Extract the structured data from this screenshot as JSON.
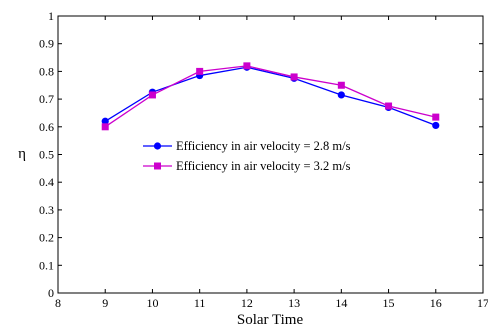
{
  "chart_data": {
    "type": "line",
    "xlabel": "Solar Time",
    "ylabel": "η",
    "xlim": [
      8,
      17
    ],
    "ylim": [
      0,
      1
    ],
    "x_ticks": [
      8,
      9,
      10,
      11,
      12,
      13,
      14,
      15,
      16,
      17
    ],
    "y_ticks": [
      0,
      0.1,
      0.2,
      0.3,
      0.4,
      0.5,
      0.6,
      0.7,
      0.8,
      0.9,
      1
    ],
    "y_tick_labels": [
      "0",
      "0.1",
      "0.2",
      "0.3",
      "0.4",
      "0.5",
      "0.6",
      "0.7",
      "0.8",
      "0.9",
      "1"
    ],
    "grid": false,
    "legend_position": "center",
    "series": [
      {
        "name": "Efficiency in air velocity = 2.8 m/s",
        "color": "#0000ff",
        "marker": "circle",
        "x": [
          9,
          10,
          11,
          12,
          13,
          14,
          15,
          16
        ],
        "values": [
          0.62,
          0.725,
          0.785,
          0.815,
          0.775,
          0.715,
          0.67,
          0.605
        ]
      },
      {
        "name": "Efficiency in air velocity = 3.2 m/s",
        "color": "#cc00cc",
        "marker": "square",
        "x": [
          9,
          10,
          11,
          12,
          13,
          14,
          15,
          16
        ],
        "values": [
          0.6,
          0.715,
          0.8,
          0.82,
          0.78,
          0.75,
          0.675,
          0.635
        ]
      }
    ]
  }
}
